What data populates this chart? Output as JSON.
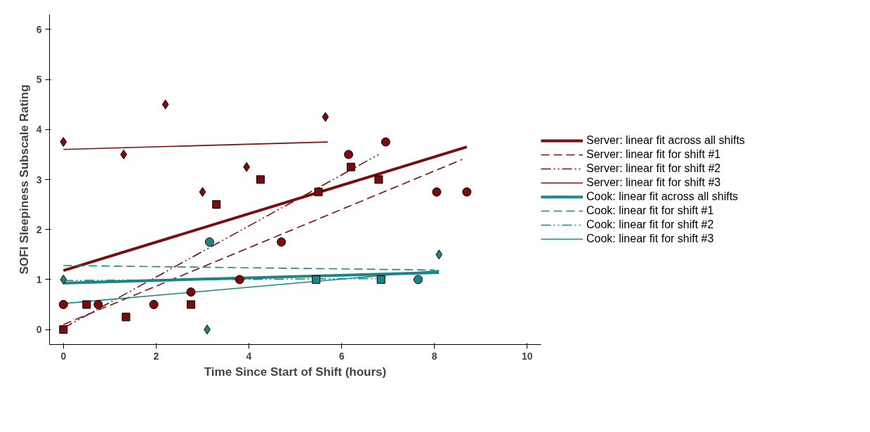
{
  "chart_data": {
    "type": "scatter",
    "xlabel": "Time Since Start of Shift (hours)",
    "ylabel": "SOFI Sleepiness Subscale Rating",
    "xlim": [
      -0.3,
      10.3
    ],
    "ylim": [
      -0.3,
      6.3
    ],
    "xticks": [
      0,
      2,
      4,
      6,
      8,
      10
    ],
    "yticks": [
      0,
      1,
      2,
      3,
      4,
      5,
      6
    ],
    "grid": false,
    "legend": "right",
    "series": [
      {
        "type": "line",
        "name": "Server: linear fit across all shifts",
        "color": "#7a0c0c",
        "line_style": "solid",
        "x": [
          0,
          8.7
        ],
        "values": [
          1.18,
          3.65
        ]
      },
      {
        "type": "line",
        "name": "Server: linear fit for shift #1",
        "color": "#7a0c0c",
        "line_style": "dashed",
        "x": [
          0,
          8.6
        ],
        "values": [
          0.1,
          3.4
        ]
      },
      {
        "type": "line",
        "name": "Server: linear fit for shift #2",
        "color": "#7a0c0c",
        "line_style": "dashdotdot",
        "x": [
          0,
          6.8
        ],
        "values": [
          0.03,
          3.5
        ]
      },
      {
        "type": "line",
        "name": "Server: linear fit for shift #3",
        "color": "#7a0c0c",
        "line_style": "solid",
        "x": [
          0,
          5.7
        ],
        "values": [
          3.6,
          3.75
        ]
      },
      {
        "type": "line",
        "name": "Cook: linear fit across all shifts",
        "color": "#1e8585",
        "line_style": "solid",
        "x": [
          0,
          8.1
        ],
        "values": [
          0.93,
          1.14
        ]
      },
      {
        "type": "line",
        "name": "Cook: linear fit for shift #1",
        "color": "#1e8585",
        "line_style": "dashed",
        "x": [
          0,
          8.0
        ],
        "values": [
          1.28,
          1.19
        ]
      },
      {
        "type": "line",
        "name": "Cook: linear fit for shift #2",
        "color": "#1e8585",
        "line_style": "dashdotdot",
        "x": [
          0,
          6.85
        ],
        "values": [
          0.98,
          1.02
        ]
      },
      {
        "type": "line",
        "name": "Cook: linear fit for shift #3",
        "color": "#1e8585",
        "line_style": "solid",
        "x": [
          0,
          8.1
        ],
        "values": [
          0.52,
          1.18
        ]
      },
      {
        "type": "scatter",
        "color": "#7a0c0c",
        "marker": "circle",
        "x": [
          0,
          0.75,
          1.95,
          2.75,
          3.8,
          4.7,
          6.15,
          6.95,
          8.05,
          8.7
        ],
        "values": [
          0.5,
          0.5,
          0.5,
          0.75,
          1.0,
          1.75,
          3.5,
          3.75,
          2.75,
          2.75
        ]
      },
      {
        "type": "scatter",
        "color": "#7a0c0c",
        "marker": "square",
        "x": [
          0,
          0.5,
          1.35,
          2.75,
          3.3,
          4.25,
          5.5,
          6.2,
          6.8
        ],
        "values": [
          0,
          0.5,
          0.25,
          0.5,
          2.5,
          3.0,
          2.75,
          3.25,
          3.0
        ]
      },
      {
        "type": "scatter",
        "color": "#7a0c0c",
        "marker": "diamond",
        "x": [
          0,
          1.3,
          2.2,
          3.0,
          3.95,
          5.65
        ],
        "values": [
          3.75,
          3.5,
          4.5,
          2.75,
          3.25,
          4.25
        ]
      },
      {
        "type": "scatter",
        "color": "#1e8585",
        "marker": "circle",
        "x": [
          3.15,
          7.65
        ],
        "values": [
          1.75,
          1
        ]
      },
      {
        "type": "scatter",
        "color": "#1e8585",
        "marker": "square",
        "x": [
          5.45,
          6.85
        ],
        "values": [
          1,
          1
        ]
      },
      {
        "type": "scatter",
        "color": "#1e8585",
        "marker": "diamond",
        "x": [
          0,
          3.1,
          8.1
        ],
        "values": [
          1,
          0,
          1.5
        ]
      }
    ]
  }
}
